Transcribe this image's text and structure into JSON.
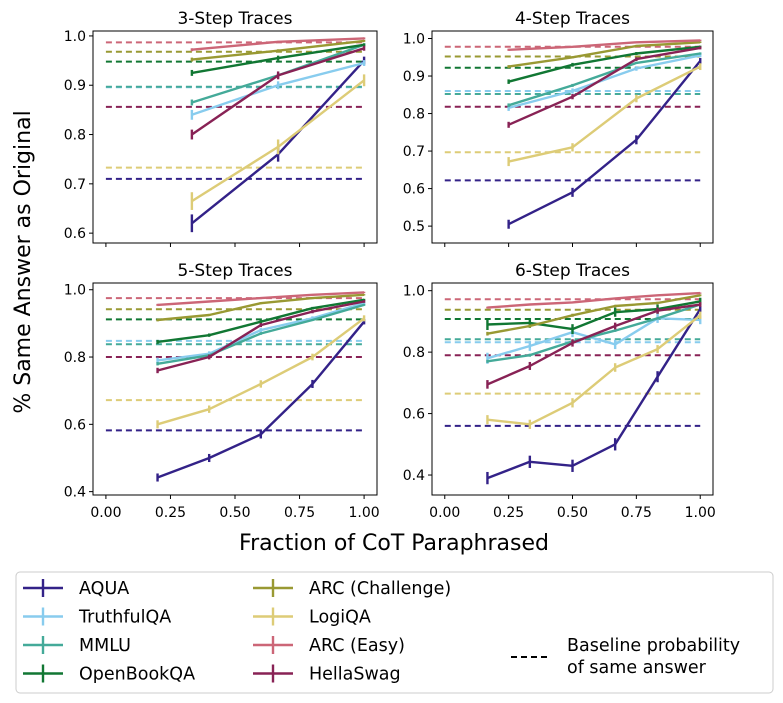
{
  "figure": {
    "xlabel": "Fraction of CoT Paraphrased",
    "ylabel": "% Same Answer as Original"
  },
  "legend": {
    "baseline_label_line1": "Baseline probability",
    "baseline_label_line2": "of same answer"
  },
  "chart_data": [
    {
      "type": "line",
      "title": "3-Step Traces",
      "xlim": [
        -0.05,
        1.05
      ],
      "ylim": [
        0.58,
        1.01
      ],
      "xticks": [
        "0.00",
        "0.25",
        "0.50",
        "0.75",
        "1.00"
      ],
      "yticks": [
        "0.6",
        "0.7",
        "0.8",
        "0.9",
        "1.0"
      ],
      "series": [
        {
          "name": "AQUA",
          "color": "#332288",
          "x": [
            0.333,
            0.667,
            1.0
          ],
          "y": [
            0.62,
            0.76,
            0.95
          ],
          "err": [
            0.018,
            0.015,
            0.008
          ],
          "baseline": 0.71
        },
        {
          "name": "TruthfulQA",
          "color": "#88CCEE",
          "x": [
            0.333,
            0.667,
            1.0
          ],
          "y": [
            0.84,
            0.9,
            0.945
          ],
          "err": [
            0.01,
            0.008,
            0.006
          ],
          "baseline": 0.896
        },
        {
          "name": "MMLU",
          "color": "#44AA99",
          "x": [
            0.333,
            0.667,
            1.0
          ],
          "y": [
            0.865,
            0.92,
            0.982
          ],
          "err": [
            0.006,
            0.005,
            0.003
          ],
          "baseline": 0.897
        },
        {
          "name": "OpenBookQA",
          "color": "#117733",
          "x": [
            0.333,
            0.667,
            1.0
          ],
          "y": [
            0.925,
            0.955,
            0.982
          ],
          "err": [
            0.006,
            0.005,
            0.003
          ],
          "baseline": 0.948
        },
        {
          "name": "ARC (Challenge)",
          "color": "#999933",
          "x": [
            0.333,
            0.667,
            1.0
          ],
          "y": [
            0.952,
            0.97,
            0.99
          ],
          "err": [
            0.004,
            0.003,
            0.002
          ],
          "baseline": 0.968
        },
        {
          "name": "LogiQA",
          "color": "#DDCC77",
          "x": [
            0.333,
            0.667,
            1.0
          ],
          "y": [
            0.665,
            0.775,
            0.91
          ],
          "err": [
            0.018,
            0.015,
            0.012
          ],
          "baseline": 0.733
        },
        {
          "name": "ARC (Easy)",
          "color": "#CC6677",
          "x": [
            0.333,
            0.667,
            1.0
          ],
          "y": [
            0.972,
            0.988,
            0.995
          ],
          "err": [
            0.003,
            0.002,
            0.002
          ],
          "baseline": 0.987
        },
        {
          "name": "HellaSwag",
          "color": "#882255",
          "x": [
            0.333,
            0.667,
            1.0
          ],
          "y": [
            0.8,
            0.92,
            0.975
          ],
          "err": [
            0.01,
            0.008,
            0.005
          ],
          "baseline": 0.856
        }
      ]
    },
    {
      "type": "line",
      "title": "4-Step Traces",
      "xlim": [
        -0.05,
        1.05
      ],
      "ylim": [
        0.455,
        1.02
      ],
      "xticks": [
        "0.00",
        "0.25",
        "0.50",
        "0.75",
        "1.00"
      ],
      "yticks": [
        "0.5",
        "0.6",
        "0.7",
        "0.8",
        "0.9",
        "1.0"
      ],
      "series": [
        {
          "name": "AQUA",
          "color": "#332288",
          "x": [
            0.25,
            0.5,
            0.75,
            1.0
          ],
          "y": [
            0.505,
            0.59,
            0.73,
            0.94
          ],
          "err": [
            0.012,
            0.012,
            0.012,
            0.008
          ],
          "baseline": 0.622
        },
        {
          "name": "TruthfulQA",
          "color": "#88CCEE",
          "x": [
            0.25,
            0.5,
            0.75,
            1.0
          ],
          "y": [
            0.815,
            0.86,
            0.92,
            0.955
          ],
          "err": [
            0.008,
            0.007,
            0.006,
            0.005
          ],
          "baseline": 0.86
        },
        {
          "name": "MMLU",
          "color": "#44AA99",
          "x": [
            0.25,
            0.5,
            0.75,
            1.0
          ],
          "y": [
            0.822,
            0.875,
            0.935,
            0.96
          ],
          "err": [
            0.005,
            0.004,
            0.003,
            0.003
          ],
          "baseline": 0.852
        },
        {
          "name": "OpenBookQA",
          "color": "#117733",
          "x": [
            0.25,
            0.5,
            0.75,
            1.0
          ],
          "y": [
            0.885,
            0.93,
            0.96,
            0.978
          ],
          "err": [
            0.006,
            0.005,
            0.004,
            0.003
          ],
          "baseline": 0.922
        },
        {
          "name": "ARC (Challenge)",
          "color": "#999933",
          "x": [
            0.25,
            0.5,
            0.75,
            1.0
          ],
          "y": [
            0.925,
            0.95,
            0.98,
            0.99
          ],
          "err": [
            0.004,
            0.003,
            0.003,
            0.002
          ],
          "baseline": 0.952
        },
        {
          "name": "LogiQA",
          "color": "#DDCC77",
          "x": [
            0.25,
            0.5,
            0.75,
            1.0
          ],
          "y": [
            0.672,
            0.71,
            0.84,
            0.925
          ],
          "err": [
            0.012,
            0.011,
            0.01,
            0.009
          ],
          "baseline": 0.697
        },
        {
          "name": "ARC (Easy)",
          "color": "#CC6677",
          "x": [
            0.25,
            0.5,
            0.75,
            1.0
          ],
          "y": [
            0.97,
            0.978,
            0.99,
            0.995
          ],
          "err": [
            0.003,
            0.002,
            0.002,
            0.002
          ],
          "baseline": 0.978
        },
        {
          "name": "HellaSwag",
          "color": "#882255",
          "x": [
            0.25,
            0.5,
            0.75,
            1.0
          ],
          "y": [
            0.77,
            0.845,
            0.945,
            0.975
          ],
          "err": [
            0.008,
            0.007,
            0.005,
            0.004
          ],
          "baseline": 0.818
        }
      ]
    },
    {
      "type": "line",
      "title": "5-Step Traces",
      "xlim": [
        -0.05,
        1.05
      ],
      "ylim": [
        0.39,
        1.02
      ],
      "xticks": [
        "0.00",
        "0.25",
        "0.50",
        "0.75",
        "1.00"
      ],
      "yticks": [
        "0.4",
        "0.6",
        "0.8",
        "1.0"
      ],
      "series": [
        {
          "name": "AQUA",
          "color": "#332288",
          "x": [
            0.2,
            0.4,
            0.6,
            0.8,
            1.0
          ],
          "y": [
            0.442,
            0.5,
            0.57,
            0.72,
            0.905
          ],
          "err": [
            0.012,
            0.012,
            0.012,
            0.012,
            0.008
          ],
          "baseline": 0.582
        },
        {
          "name": "TruthfulQA",
          "color": "#88CCEE",
          "x": [
            0.2,
            0.4,
            0.6,
            0.8,
            1.0
          ],
          "y": [
            0.79,
            0.81,
            0.88,
            0.915,
            0.96
          ],
          "err": [
            0.008,
            0.007,
            0.006,
            0.006,
            0.005
          ],
          "baseline": 0.848
        },
        {
          "name": "MMLU",
          "color": "#44AA99",
          "x": [
            0.2,
            0.4,
            0.6,
            0.8,
            1.0
          ],
          "y": [
            0.78,
            0.805,
            0.87,
            0.91,
            0.955
          ],
          "err": [
            0.005,
            0.004,
            0.004,
            0.003,
            0.003
          ],
          "baseline": 0.838
        },
        {
          "name": "OpenBookQA",
          "color": "#117733",
          "x": [
            0.2,
            0.4,
            0.6,
            0.8,
            1.0
          ],
          "y": [
            0.845,
            0.865,
            0.905,
            0.945,
            0.97
          ],
          "err": [
            0.006,
            0.005,
            0.005,
            0.004,
            0.003
          ],
          "baseline": 0.912
        },
        {
          "name": "ARC (Challenge)",
          "color": "#999933",
          "x": [
            0.2,
            0.4,
            0.6,
            0.8,
            1.0
          ],
          "y": [
            0.91,
            0.925,
            0.96,
            0.975,
            0.985
          ],
          "err": [
            0.004,
            0.003,
            0.003,
            0.003,
            0.002
          ],
          "baseline": 0.942
        },
        {
          "name": "LogiQA",
          "color": "#DDCC77",
          "x": [
            0.2,
            0.4,
            0.6,
            0.8,
            1.0
          ],
          "y": [
            0.6,
            0.645,
            0.72,
            0.8,
            0.915
          ],
          "err": [
            0.012,
            0.011,
            0.011,
            0.01,
            0.009
          ],
          "baseline": 0.672
        },
        {
          "name": "ARC (Easy)",
          "color": "#CC6677",
          "x": [
            0.2,
            0.4,
            0.6,
            0.8,
            1.0
          ],
          "y": [
            0.955,
            0.965,
            0.975,
            0.985,
            0.992
          ],
          "err": [
            0.003,
            0.002,
            0.002,
            0.002,
            0.002
          ],
          "baseline": 0.975
        },
        {
          "name": "HellaSwag",
          "color": "#882255",
          "x": [
            0.2,
            0.4,
            0.6,
            0.8,
            1.0
          ],
          "y": [
            0.76,
            0.8,
            0.895,
            0.935,
            0.965
          ],
          "err": [
            0.008,
            0.007,
            0.006,
            0.005,
            0.004
          ],
          "baseline": 0.8
        }
      ]
    },
    {
      "type": "line",
      "title": "6-Step Traces",
      "xlim": [
        -0.05,
        1.05
      ],
      "ylim": [
        0.335,
        1.025
      ],
      "xticks": [
        "0.00",
        "0.25",
        "0.50",
        "0.75",
        "1.00"
      ],
      "yticks": [
        "0.4",
        "0.6",
        "0.8",
        "1.0"
      ],
      "series": [
        {
          "name": "AQUA",
          "color": "#332288",
          "x": [
            0.167,
            0.333,
            0.5,
            0.667,
            0.833,
            1.0
          ],
          "y": [
            0.39,
            0.443,
            0.43,
            0.5,
            0.72,
            0.94
          ],
          "err": [
            0.02,
            0.02,
            0.02,
            0.02,
            0.018,
            0.01
          ],
          "baseline": 0.56
        },
        {
          "name": "TruthfulQA",
          "color": "#88CCEE",
          "x": [
            0.167,
            0.333,
            0.5,
            0.667,
            0.833,
            1.0
          ],
          "y": [
            0.78,
            0.82,
            0.865,
            0.825,
            0.91,
            0.905
          ],
          "err": [
            0.018,
            0.016,
            0.016,
            0.015,
            0.015,
            0.014
          ],
          "baseline": 0.832
        },
        {
          "name": "MMLU",
          "color": "#44AA99",
          "x": [
            0.167,
            0.333,
            0.5,
            0.667,
            0.833,
            1.0
          ],
          "y": [
            0.77,
            0.79,
            0.835,
            0.87,
            0.91,
            0.955
          ],
          "err": [
            0.005,
            0.005,
            0.004,
            0.004,
            0.003,
            0.003
          ],
          "baseline": 0.842
        },
        {
          "name": "OpenBookQA",
          "color": "#117733",
          "x": [
            0.167,
            0.333,
            0.5,
            0.667,
            0.833,
            1.0
          ],
          "y": [
            0.89,
            0.895,
            0.875,
            0.93,
            0.94,
            0.965
          ],
          "err": [
            0.018,
            0.016,
            0.016,
            0.015,
            0.015,
            0.012
          ],
          "baseline": 0.908
        },
        {
          "name": "ARC (Challenge)",
          "color": "#999933",
          "x": [
            0.167,
            0.333,
            0.5,
            0.667,
            0.833,
            1.0
          ],
          "y": [
            0.86,
            0.885,
            0.92,
            0.95,
            0.96,
            0.985
          ],
          "err": [
            0.006,
            0.005,
            0.005,
            0.004,
            0.004,
            0.003
          ],
          "baseline": 0.938
        },
        {
          "name": "LogiQA",
          "color": "#DDCC77",
          "x": [
            0.167,
            0.333,
            0.5,
            0.667,
            0.833,
            1.0
          ],
          "y": [
            0.58,
            0.565,
            0.635,
            0.75,
            0.81,
            0.92
          ],
          "err": [
            0.015,
            0.015,
            0.015,
            0.014,
            0.013,
            0.012
          ],
          "baseline": 0.665
        },
        {
          "name": "ARC (Easy)",
          "color": "#CC6677",
          "x": [
            0.167,
            0.333,
            0.5,
            0.667,
            0.833,
            1.0
          ],
          "y": [
            0.945,
            0.955,
            0.962,
            0.975,
            0.985,
            0.992
          ],
          "err": [
            0.003,
            0.003,
            0.002,
            0.002,
            0.002,
            0.002
          ],
          "baseline": 0.972
        },
        {
          "name": "HellaSwag",
          "color": "#882255",
          "x": [
            0.167,
            0.333,
            0.5,
            0.667,
            0.833,
            1.0
          ],
          "y": [
            0.695,
            0.755,
            0.83,
            0.885,
            0.935,
            0.955
          ],
          "err": [
            0.014,
            0.013,
            0.012,
            0.011,
            0.01,
            0.008
          ],
          "baseline": 0.79
        }
      ]
    }
  ]
}
